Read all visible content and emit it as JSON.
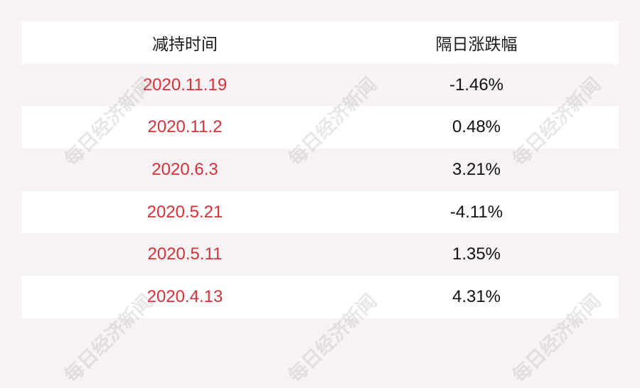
{
  "header": {
    "col1": "减持时间",
    "col2": "隔日涨跌幅"
  },
  "rows": [
    {
      "date": "2020.11.19",
      "change": "-1.46%"
    },
    {
      "date": "2020.11.2",
      "change": "0.48%"
    },
    {
      "date": "2020.6.3",
      "change": "3.21%"
    },
    {
      "date": "2020.5.21",
      "change": "-4.11%"
    },
    {
      "date": "2020.5.11",
      "change": "1.35%"
    },
    {
      "date": "2020.4.13",
      "change": "4.31%"
    }
  ],
  "watermark": "每日经济新闻",
  "colors": {
    "date_text": "#d7313a",
    "background": "#f7f3f4",
    "row_alt": "#ffffff"
  }
}
